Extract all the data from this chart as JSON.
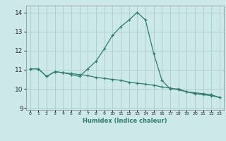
{
  "xlabel": "Humidex (Indice chaleur)",
  "xlim": [
    -0.5,
    23.5
  ],
  "ylim": [
    8.9,
    14.35
  ],
  "yticks": [
    9,
    10,
    11,
    12,
    13,
    14
  ],
  "xticks": [
    0,
    1,
    2,
    3,
    4,
    5,
    6,
    7,
    8,
    9,
    10,
    11,
    12,
    13,
    14,
    15,
    16,
    17,
    18,
    19,
    20,
    21,
    22,
    23
  ],
  "background_color": "#cce8e8",
  "line_color": "#2e7d6e",
  "grid_color": "#aacccc",
  "series1": [
    11.05,
    11.05,
    10.65,
    10.9,
    10.85,
    10.8,
    10.75,
    10.7,
    10.6,
    10.55,
    10.5,
    10.45,
    10.35,
    10.3,
    10.25,
    10.2,
    10.1,
    10.05,
    9.95,
    9.85,
    9.8,
    9.75,
    9.7,
    9.55
  ],
  "series2": [
    11.05,
    11.05,
    10.65,
    10.9,
    10.85,
    10.75,
    10.65,
    11.05,
    11.45,
    12.1,
    12.8,
    13.25,
    13.6,
    14.0,
    13.6,
    11.85,
    10.45,
    10.0,
    10.0,
    9.85,
    9.75,
    9.7,
    9.65,
    9.55
  ]
}
